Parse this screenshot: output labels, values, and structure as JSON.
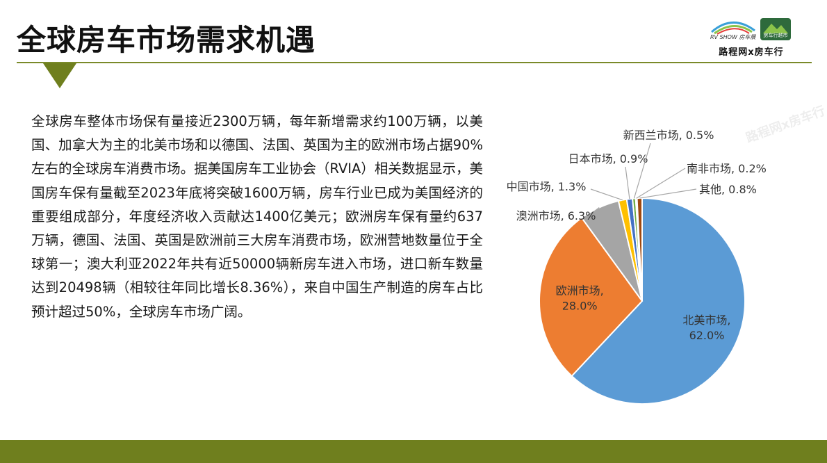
{
  "title": "全球房车市场需求机遇",
  "logo": {
    "rvshow": "RV SHOW 房车展",
    "badge": "房车行越市",
    "text": "路程网x房车行"
  },
  "paragraph": "全球房车整体市场保有量接近2300万辆，每年新增需求约100万辆，以美国、加拿大为主的北美市场和以德国、法国、英国为主的欧洲市场占据90%左右的全球房车消费市场。据美国房车工业协会（RVIA）相关数据显示，美国房车保有量截至2023年底将突破1600万辆，房车行业已成为美国经济的重要组成部分，年度经济收入贡献达1400亿美元；欧洲房车保有量约637万辆，德国、法国、英国是欧洲前三大房车消费市场，欧洲营地数量位于全球第一；澳大利亚2022年共有近50000辆新房车进入市场，进口新车数量达到20498辆（相较往年同比增长8.36%），来自中国生产制造的房车占比预计超过50%，全球房车市场广阔。",
  "watermark": "路程网x房车行",
  "colors": {
    "accent_olive": "#6f7f1e",
    "north_america": "#5b9bd5",
    "europe": "#ed7d31",
    "australia": "#a5a5a5",
    "china": "#ffc000",
    "japan": "#4472c4",
    "new_zealand": "#70ad47",
    "south_africa": "#264478",
    "other": "#9e480e"
  },
  "chart_data": {
    "type": "pie",
    "title": "",
    "slices": [
      {
        "name": "北美市场",
        "value": 62.0,
        "label": "北美市场,",
        "pct": "62.0%"
      },
      {
        "name": "欧洲市场",
        "value": 28.0,
        "label": "欧洲市场,",
        "pct": "28.0%"
      },
      {
        "name": "澳洲市场",
        "value": 6.3,
        "label": "澳洲市场, 6.3%"
      },
      {
        "name": "中国市场",
        "value": 1.3,
        "label": "中国市场, 1.3%"
      },
      {
        "name": "日本市场",
        "value": 0.9,
        "label": "日本市场, 0.9%"
      },
      {
        "name": "新西兰市场",
        "value": 0.5,
        "label": "新西兰市场, 0.5%"
      },
      {
        "name": "南非市场",
        "value": 0.2,
        "label": "南非市场, 0.2%"
      },
      {
        "name": "其他",
        "value": 0.8,
        "label": "其他, 0.8%"
      }
    ]
  }
}
